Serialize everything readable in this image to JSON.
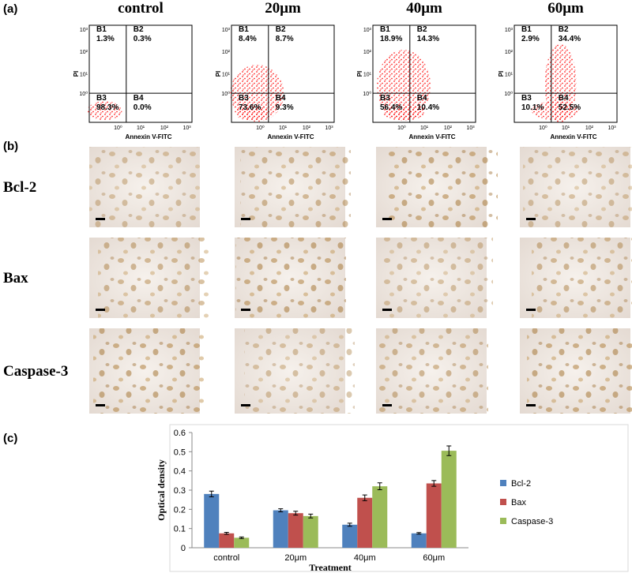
{
  "panel_labels": [
    "(a)",
    "(b)",
    "(c)"
  ],
  "flow": {
    "column_titles": [
      "control",
      "20μm",
      "40μm",
      "60μm"
    ],
    "x_label": "Annexin V-FITC",
    "y_label": "PI",
    "tick_labels": [
      "10⁰",
      "10¹",
      "10²",
      "10³"
    ],
    "plots": [
      {
        "quadrants": [
          [
            "B1",
            "1.3%"
          ],
          [
            "B2",
            "0.3%"
          ],
          [
            "B3",
            "98.3%"
          ],
          [
            "B4",
            "0.0%"
          ]
        ]
      },
      {
        "quadrants": [
          [
            "B1",
            "8.4%"
          ],
          [
            "B2",
            "8.7%"
          ],
          [
            "B3",
            "73.6%"
          ],
          [
            "B4",
            "9.3%"
          ]
        ]
      },
      {
        "quadrants": [
          [
            "B1",
            "18.9%"
          ],
          [
            "B2",
            "14.3%"
          ],
          [
            "B3",
            "56.4%"
          ],
          [
            "B4",
            "10.4%"
          ]
        ]
      },
      {
        "quadrants": [
          [
            "B1",
            "2.9%"
          ],
          [
            "B2",
            "34.4%"
          ],
          [
            "B3",
            "10.1%"
          ],
          [
            "B4",
            "52.5%"
          ]
        ]
      }
    ]
  },
  "micrographs": {
    "row_labels": [
      "Bcl-2",
      "Bax",
      "Caspase-3"
    ]
  },
  "chart_data": {
    "type": "bar",
    "y_label": "Optical density",
    "x_label": "Treatment",
    "categories": [
      "control",
      "20μm",
      "40μm",
      "60μm"
    ],
    "series": [
      {
        "name": "Bcl-2",
        "color": "#4f81bd",
        "values": [
          0.28,
          0.195,
          0.12,
          0.075
        ],
        "errors": [
          0.015,
          0.008,
          0.008,
          0.004
        ]
      },
      {
        "name": "Bax",
        "color": "#c0504d",
        "values": [
          0.075,
          0.18,
          0.26,
          0.335
        ],
        "errors": [
          0.005,
          0.01,
          0.015,
          0.015
        ]
      },
      {
        "name": "Caspase-3",
        "color": "#9bbb59",
        "values": [
          0.052,
          0.165,
          0.32,
          0.505
        ],
        "errors": [
          0.004,
          0.01,
          0.018,
          0.025
        ]
      }
    ],
    "ylim": [
      0,
      0.6
    ],
    "yticks": [
      0,
      0.1,
      0.2,
      0.3,
      0.4,
      0.5,
      0.6
    ],
    "grid": false,
    "legend": "right"
  }
}
